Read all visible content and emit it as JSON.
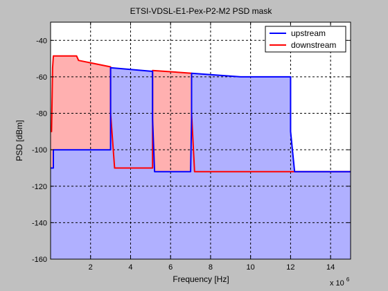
{
  "chart_data": {
    "type": "area",
    "title": "ETSI-VDSL-E1-Pex-P2-M2 PSD mask",
    "xlabel": "Frequency [Hz]",
    "ylabel": "PSD [dBm]",
    "x_multiplier_label": "x 10",
    "x_multiplier_exponent": "6",
    "xlim": [
      0,
      15000000
    ],
    "ylim": [
      -160,
      -30
    ],
    "x_ticks": [
      2000000,
      4000000,
      6000000,
      8000000,
      10000000,
      12000000,
      14000000
    ],
    "x_tick_labels": [
      "2",
      "4",
      "6",
      "8",
      "10",
      "12",
      "14"
    ],
    "y_ticks": [
      -160,
      -140,
      -120,
      -100,
      -80,
      -60,
      -40
    ],
    "y_tick_labels": [
      "-160",
      "-140",
      "-120",
      "-100",
      "-80",
      "-60",
      "-40"
    ],
    "grid": true,
    "legend_position": "top-right",
    "series": [
      {
        "name": "upstream",
        "color": "#0000ff",
        "fill": "#b0b0ff",
        "points": [
          [
            0,
            -110
          ],
          [
            138000,
            -110
          ],
          [
            138000,
            -100
          ],
          [
            3000000,
            -100
          ],
          [
            3000000,
            -83
          ],
          [
            3000000,
            -55
          ],
          [
            5100000,
            -57
          ],
          [
            5100000,
            -83
          ],
          [
            5200000,
            -112
          ],
          [
            7000000,
            -112
          ],
          [
            7050000,
            -83
          ],
          [
            7050000,
            -58
          ],
          [
            9500000,
            -60
          ],
          [
            12000000,
            -60
          ],
          [
            12000000,
            -90
          ],
          [
            12200000,
            -112
          ],
          [
            15000000,
            -112
          ]
        ]
      },
      {
        "name": "downstream",
        "color": "#ff0000",
        "fill": "#ffb0b0",
        "points": [
          [
            0,
            -90
          ],
          [
            50000,
            -90
          ],
          [
            100000,
            -55
          ],
          [
            138000,
            -48.5
          ],
          [
            1300000,
            -48.5
          ],
          [
            1400000,
            -51
          ],
          [
            3000000,
            -54.5
          ],
          [
            3000000,
            -80
          ],
          [
            3200000,
            -110
          ],
          [
            5100000,
            -110
          ],
          [
            5100000,
            -56.5
          ],
          [
            7050000,
            -58
          ],
          [
            7050000,
            -80
          ],
          [
            7200000,
            -112
          ],
          [
            15000000,
            -112
          ]
        ]
      }
    ]
  }
}
